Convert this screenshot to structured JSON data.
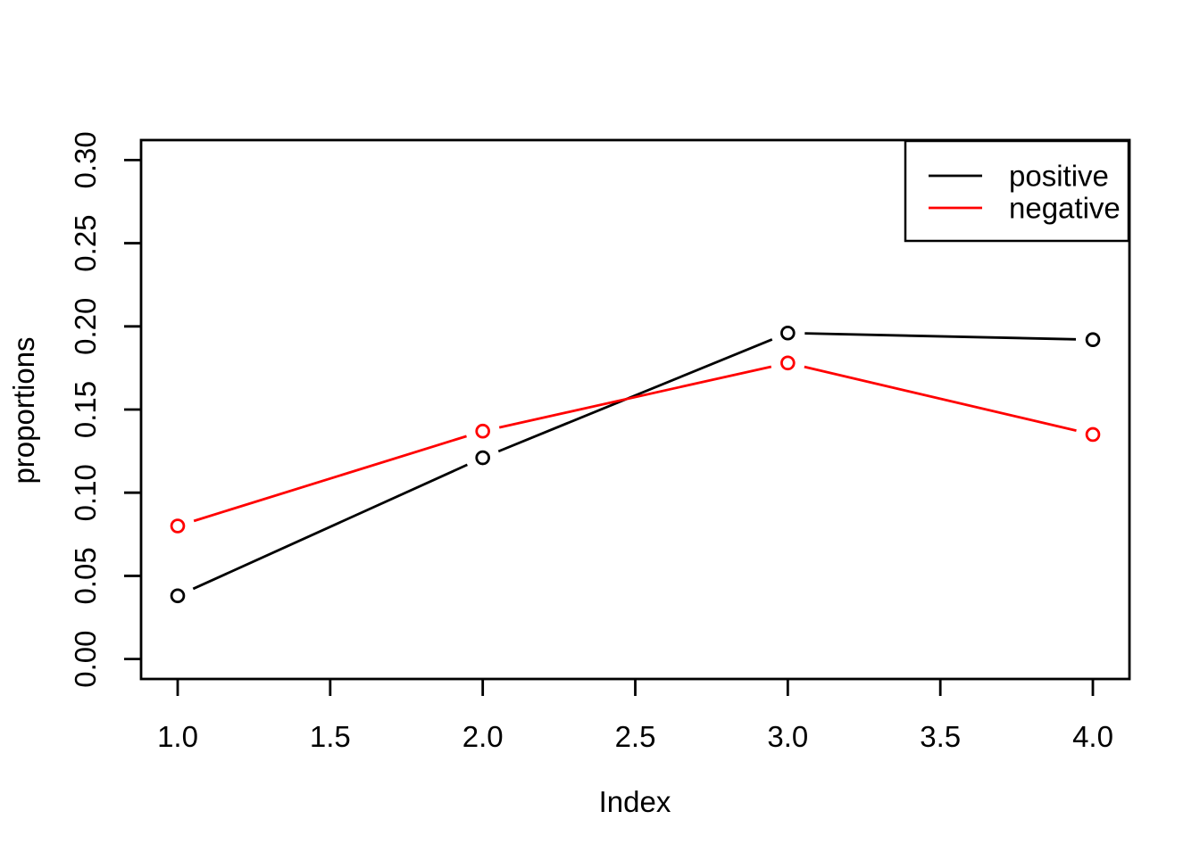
{
  "figure": {
    "background": "#ffffff",
    "foreground": "#000000"
  },
  "chart_data": {
    "type": "line",
    "title": "",
    "xlabel": "Index",
    "ylabel": "proportions",
    "x": [
      1,
      2,
      3,
      4
    ],
    "series": [
      {
        "name": "positive",
        "color": "#000000",
        "values": [
          0.038,
          0.121,
          0.196,
          0.192
        ]
      },
      {
        "name": "negative",
        "color": "#ff0000",
        "values": [
          0.08,
          0.137,
          0.178,
          0.135
        ]
      }
    ],
    "x_ticks": [
      1.0,
      1.5,
      2.0,
      2.5,
      3.0,
      3.5,
      4.0
    ],
    "x_tick_labels": [
      "1.0",
      "1.5",
      "2.0",
      "2.5",
      "3.0",
      "3.5",
      "4.0"
    ],
    "y_ticks": [
      0.0,
      0.05,
      0.1,
      0.15,
      0.2,
      0.25,
      0.3
    ],
    "y_tick_labels": [
      "0.00",
      "0.05",
      "0.10",
      "0.15",
      "0.20",
      "0.25",
      "0.30"
    ],
    "xlim": [
      0.88,
      4.12
    ],
    "ylim": [
      -0.012,
      0.312
    ],
    "grid": false,
    "marker": "open-circle",
    "line_type": "b",
    "legend": {
      "position": "topright",
      "entries": [
        "positive",
        "negative"
      ]
    }
  }
}
